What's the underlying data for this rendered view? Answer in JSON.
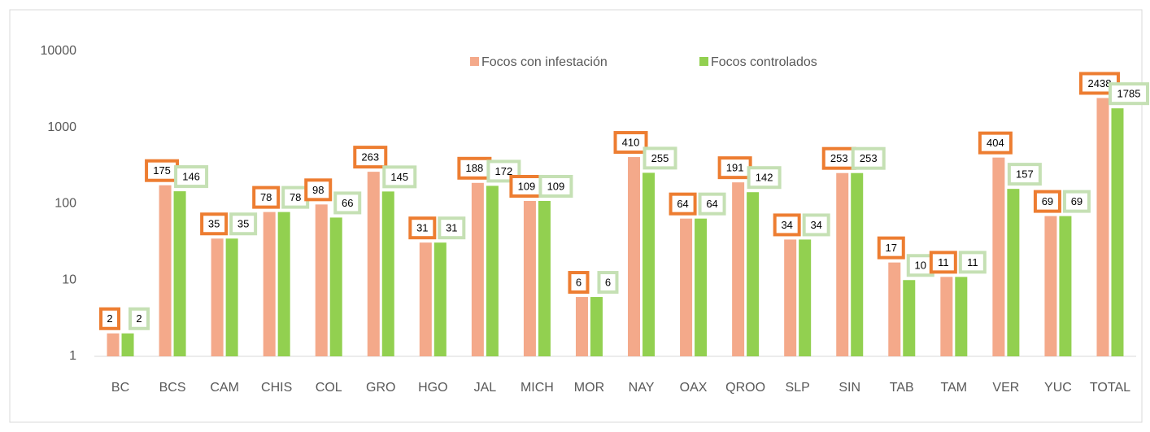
{
  "chart_data": {
    "type": "bar",
    "categories": [
      "BC",
      "BCS",
      "CAM",
      "CHIS",
      "COL",
      "GRO",
      "HGO",
      "JAL",
      "MICH",
      "MOR",
      "NAY",
      "OAX",
      "QROO",
      "SLP",
      "SIN",
      "TAB",
      "TAM",
      "VER",
      "YUC",
      "TOTAL"
    ],
    "series": [
      {
        "name": "Focos con infestación",
        "color": "#f4a98a",
        "label_border": "#ed7d31",
        "values": [
          2,
          175,
          35,
          78,
          98,
          263,
          31,
          188,
          109,
          6,
          410,
          64,
          191,
          34,
          253,
          17,
          11,
          404,
          69,
          2438
        ]
      },
      {
        "name": "Focos controlados",
        "color": "#92d050",
        "label_border": "#c5e0b4",
        "values": [
          2,
          146,
          35,
          78,
          66,
          145,
          31,
          172,
          109,
          6,
          255,
          64,
          142,
          34,
          253,
          10,
          11,
          157,
          69,
          1785
        ]
      }
    ],
    "ylim": [
      1,
      10000
    ],
    "yticks": [
      1,
      10,
      100,
      1000,
      10000
    ],
    "log_scale": true,
    "grid": false,
    "legend": "top"
  }
}
